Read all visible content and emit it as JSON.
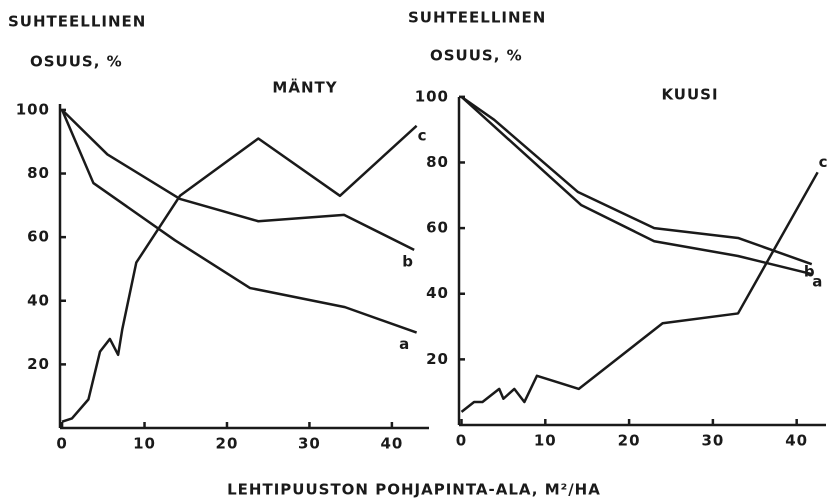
{
  "x_axis_label": "LEHTIPUUSTON   POHJAPINTA-ALA, M²/HA",
  "chart_data": [
    {
      "type": "line",
      "title": "MÄNTY",
      "ylabel": [
        "SUHTEELLINEN",
        "OSUUS, %"
      ],
      "xlim": [
        -0.25,
        44.5
      ],
      "ylim": [
        0,
        105
      ],
      "xticks": [
        0,
        10,
        20,
        30,
        40
      ],
      "yticks": [
        20,
        40,
        60,
        80,
        100
      ],
      "series": [
        {
          "name": "a",
          "color": "#1a1a1a",
          "x": [
            0,
            3.8,
            13.7,
            22.8,
            34.3,
            43
          ],
          "values": [
            100,
            77,
            59,
            44,
            38,
            30
          ]
        },
        {
          "name": "b",
          "color": "#1a1a1a",
          "x": [
            0,
            5.5,
            14.3,
            23.8,
            34.2,
            42.7
          ],
          "values": [
            100,
            86,
            72,
            65,
            67,
            56
          ]
        },
        {
          "name": "c",
          "color": "#1a1a1a",
          "x": [
            0,
            1.2,
            3.2,
            4.6,
            5.8,
            6.8,
            7.3,
            9,
            14.3,
            23.8,
            33.7,
            43
          ],
          "values": [
            2,
            3,
            9,
            24,
            28,
            23,
            31,
            52,
            73,
            91,
            73,
            95
          ]
        }
      ]
    },
    {
      "type": "line",
      "title": "KUUSI",
      "ylabel": [
        "SUHTEELLINEN",
        "OSUUS, %"
      ],
      "xlim": [
        -0.3,
        43.5
      ],
      "ylim": [
        0,
        103
      ],
      "xticks": [
        0,
        10,
        20,
        30,
        40
      ],
      "yticks": [
        20,
        40,
        60,
        80,
        100
      ],
      "series": [
        {
          "name": "a",
          "color": "#1a1a1a",
          "x": [
            0,
            14.3,
            23,
            33,
            41.8
          ],
          "values": [
            100,
            67,
            56,
            51.5,
            46
          ]
        },
        {
          "name": "b",
          "color": "#1a1a1a",
          "x": [
            0,
            3.9,
            13.9,
            23,
            33,
            41.8
          ],
          "values": [
            100,
            93,
            71,
            60,
            57,
            49
          ]
        },
        {
          "name": "c",
          "color": "#1a1a1a",
          "x": [
            0,
            1.5,
            2.5,
            4.5,
            5,
            6.3,
            7.5,
            9,
            14,
            24,
            33,
            42.5
          ],
          "values": [
            4,
            7,
            7,
            11,
            8,
            11,
            7,
            15,
            11,
            31,
            34,
            77
          ]
        }
      ]
    }
  ]
}
